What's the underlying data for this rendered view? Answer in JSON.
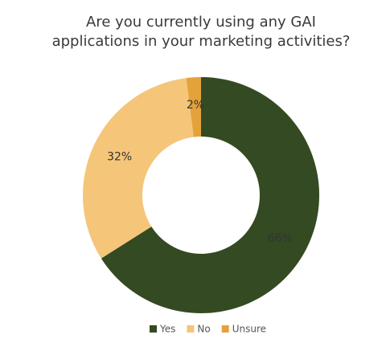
{
  "chart_data": {
    "type": "donut",
    "title": [
      "Are you currently using any GAI",
      "applications in your marketing activities?"
    ],
    "categories": [
      "Yes",
      "No",
      "Unsure"
    ],
    "values": [
      66,
      32,
      2
    ],
    "value_labels": [
      "66%",
      "32%",
      "2%"
    ],
    "colors": [
      "#344a22",
      "#f5c57a",
      "#e3a23a"
    ],
    "legend": "bottom"
  }
}
